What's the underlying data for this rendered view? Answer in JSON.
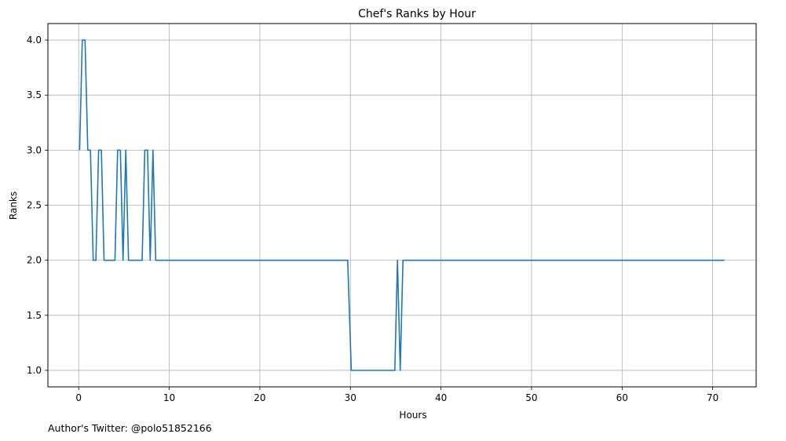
{
  "credit": "Author's Twitter: @polo51852166",
  "chart_data": {
    "type": "line",
    "title": "Chef's Ranks by Hour",
    "xlabel": "Hours",
    "ylabel": "Ranks",
    "xlim": [
      -3.4,
      74.8
    ],
    "ylim": [
      0.85,
      4.15
    ],
    "xticks": [
      0,
      10,
      20,
      30,
      40,
      50,
      60,
      70
    ],
    "xtick_labels": [
      "0",
      "10",
      "20",
      "30",
      "40",
      "50",
      "60",
      "70"
    ],
    "yticks": [
      1.0,
      1.5,
      2.0,
      2.5,
      3.0,
      3.5,
      4.0
    ],
    "ytick_labels": [
      "1.0",
      "1.5",
      "2.0",
      "2.5",
      "3.0",
      "3.5",
      "4.0"
    ],
    "grid": true,
    "line_color": "#1f77b4",
    "series": [
      {
        "x": [
          0.1,
          0.4,
          0.7,
          1.0,
          1.3,
          1.6,
          1.9,
          2.2,
          2.5,
          2.8,
          3.1,
          3.4,
          3.7,
          4.0,
          4.3,
          4.6,
          4.9,
          5.2,
          5.5,
          5.8,
          6.1,
          6.4,
          6.7,
          7.0,
          7.3,
          7.6,
          7.9,
          8.2,
          8.5,
          9.0,
          29.7,
          30.1,
          34.9,
          35.2,
          35.5,
          35.8,
          71.3
        ],
        "y": [
          3,
          4,
          4,
          3,
          3,
          2,
          2,
          3,
          3,
          2,
          2,
          2,
          2,
          2,
          3,
          3,
          2,
          3,
          2,
          2,
          2,
          2,
          2,
          2,
          3,
          3,
          2,
          3,
          2,
          2,
          2,
          1,
          1,
          2,
          1,
          2,
          2
        ]
      }
    ]
  }
}
